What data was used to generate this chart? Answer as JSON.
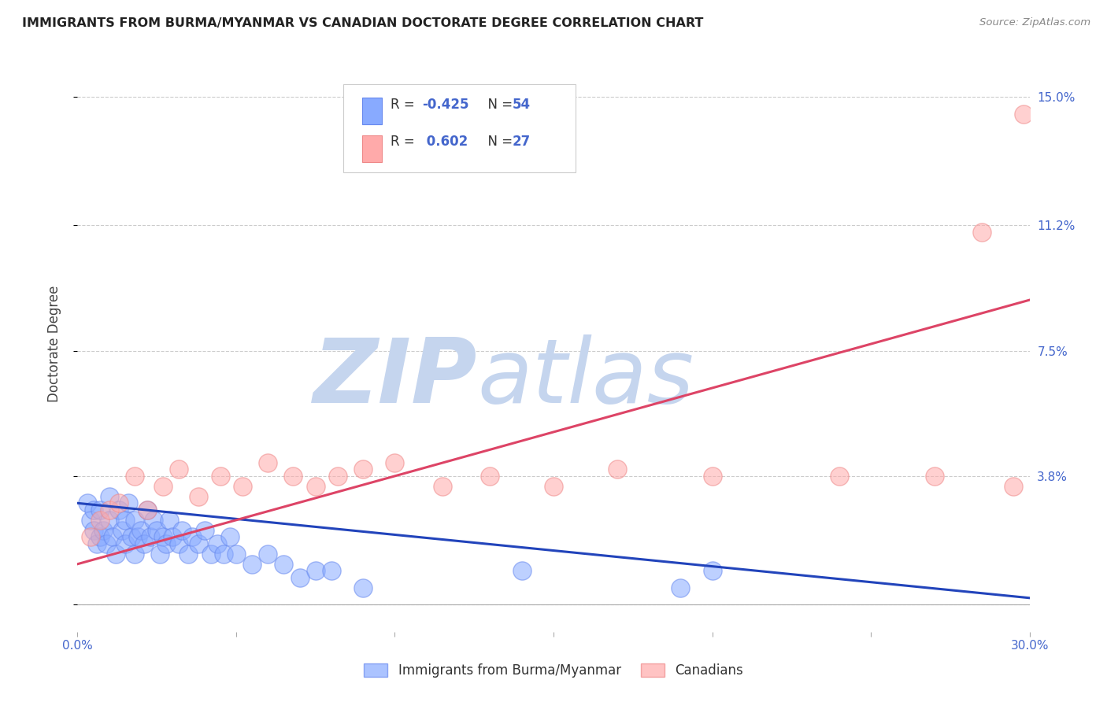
{
  "title": "IMMIGRANTS FROM BURMA/MYANMAR VS CANADIAN DOCTORATE DEGREE CORRELATION CHART",
  "source": "Source: ZipAtlas.com",
  "ylabel": "Doctorate Degree",
  "xlim": [
    0.0,
    0.3
  ],
  "ylim": [
    -0.008,
    0.162
  ],
  "yticks": [
    0.0,
    0.038,
    0.075,
    0.112,
    0.15
  ],
  "ytick_labels": [
    "",
    "3.8%",
    "7.5%",
    "11.2%",
    "15.0%"
  ],
  "xticks": [
    0.0,
    0.05,
    0.1,
    0.15,
    0.2,
    0.25,
    0.3
  ],
  "xtick_labels": [
    "0.0%",
    "",
    "",
    "",
    "",
    "",
    "30.0%"
  ],
  "grid_color": "#cccccc",
  "blue_color": "#88aaff",
  "pink_color": "#ffaaaa",
  "blue_edge_color": "#6688ee",
  "pink_edge_color": "#ee8888",
  "blue_line_color": "#2244bb",
  "pink_line_color": "#dd4466",
  "legend_R_blue": "-0.425",
  "legend_N_blue": "54",
  "legend_R_pink": "0.602",
  "legend_N_pink": "27",
  "watermark_zip": "ZIP",
  "watermark_atlas": "atlas",
  "watermark_color": "#c5d5ee",
  "label_color": "#4466cc",
  "blue_points_x": [
    0.003,
    0.004,
    0.005,
    0.005,
    0.006,
    0.007,
    0.007,
    0.008,
    0.009,
    0.01,
    0.01,
    0.011,
    0.012,
    0.013,
    0.014,
    0.015,
    0.015,
    0.016,
    0.017,
    0.018,
    0.018,
    0.019,
    0.02,
    0.021,
    0.022,
    0.023,
    0.024,
    0.025,
    0.026,
    0.027,
    0.028,
    0.029,
    0.03,
    0.032,
    0.033,
    0.035,
    0.036,
    0.038,
    0.04,
    0.042,
    0.044,
    0.046,
    0.048,
    0.05,
    0.055,
    0.06,
    0.065,
    0.07,
    0.075,
    0.08,
    0.09,
    0.14,
    0.19,
    0.2
  ],
  "blue_points_y": [
    0.03,
    0.025,
    0.022,
    0.028,
    0.018,
    0.02,
    0.028,
    0.022,
    0.018,
    0.025,
    0.032,
    0.02,
    0.015,
    0.028,
    0.022,
    0.025,
    0.018,
    0.03,
    0.02,
    0.015,
    0.025,
    0.02,
    0.022,
    0.018,
    0.028,
    0.02,
    0.025,
    0.022,
    0.015,
    0.02,
    0.018,
    0.025,
    0.02,
    0.018,
    0.022,
    0.015,
    0.02,
    0.018,
    0.022,
    0.015,
    0.018,
    0.015,
    0.02,
    0.015,
    0.012,
    0.015,
    0.012,
    0.008,
    0.01,
    0.01,
    0.005,
    0.01,
    0.005,
    0.01
  ],
  "pink_points_x": [
    0.004,
    0.007,
    0.01,
    0.013,
    0.018,
    0.022,
    0.027,
    0.032,
    0.038,
    0.045,
    0.052,
    0.06,
    0.068,
    0.075,
    0.082,
    0.09,
    0.1,
    0.115,
    0.13,
    0.15,
    0.17,
    0.2,
    0.24,
    0.27,
    0.285,
    0.295,
    0.298
  ],
  "pink_points_y": [
    0.02,
    0.025,
    0.028,
    0.03,
    0.038,
    0.028,
    0.035,
    0.04,
    0.032,
    0.038,
    0.035,
    0.042,
    0.038,
    0.035,
    0.038,
    0.04,
    0.042,
    0.035,
    0.038,
    0.035,
    0.04,
    0.038,
    0.038,
    0.038,
    0.11,
    0.035,
    0.145
  ],
  "blue_line_x": [
    0.0,
    0.3
  ],
  "blue_line_y": [
    0.03,
    0.002
  ],
  "pink_line_x": [
    0.0,
    0.3
  ],
  "pink_line_y": [
    0.012,
    0.09
  ]
}
